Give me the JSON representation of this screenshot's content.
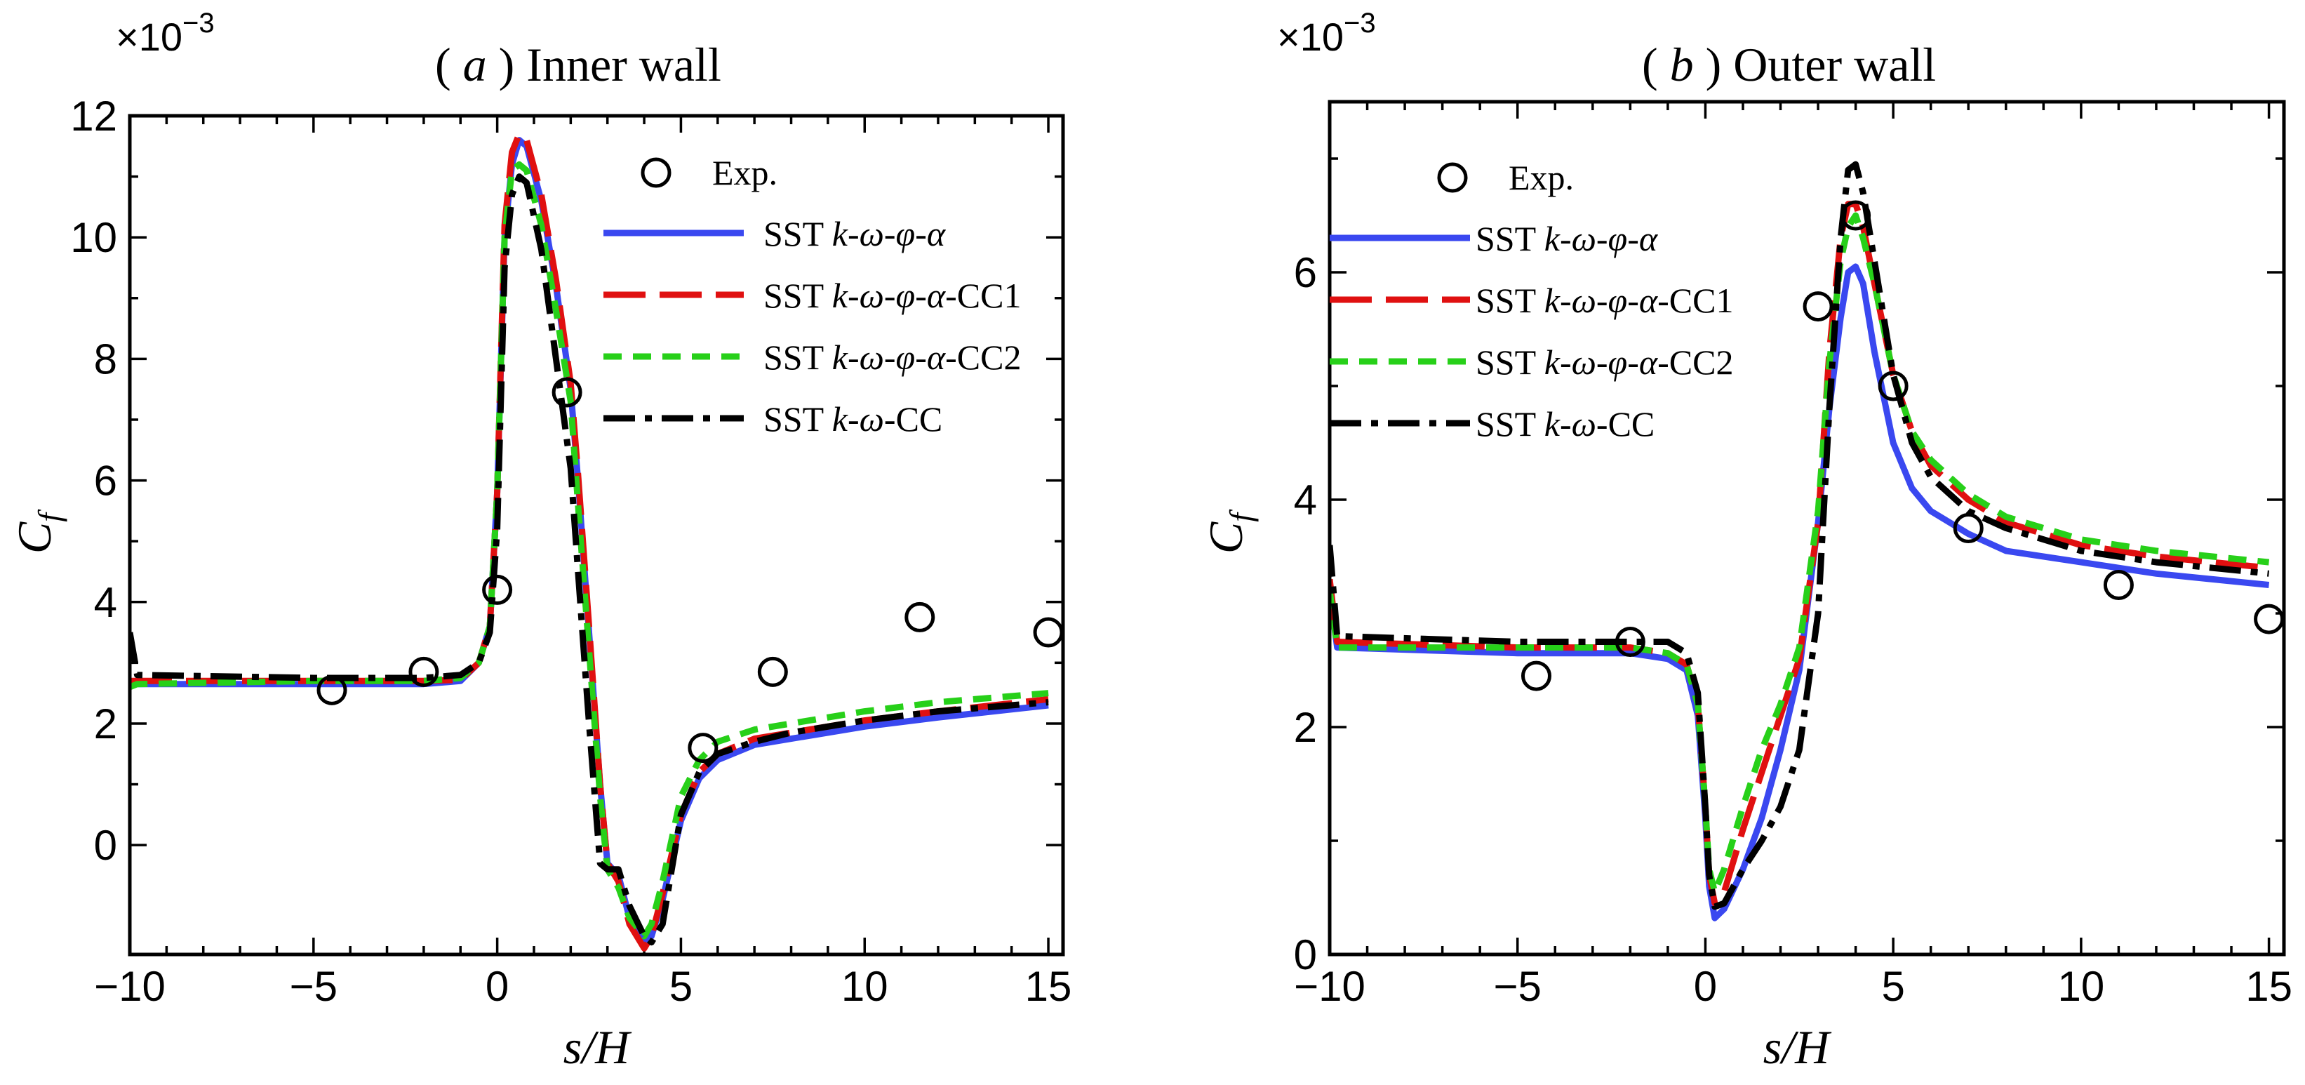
{
  "chart_data": [
    {
      "id": "a",
      "type": "line",
      "title_prefix": "( ",
      "title_letter": "a",
      "title_suffix": " ) Inner wall",
      "y_multiplier_base": "×10",
      "y_multiplier_exp": "−3",
      "xlabel": "s/H",
      "ylabel": "C",
      "ylabel_sub": "f",
      "xlim": [
        -10,
        15.4
      ],
      "ylim": [
        -1.8,
        12
      ],
      "xticks": [
        -10,
        -5,
        0,
        5,
        10,
        15
      ],
      "xtick_labels": [
        "−10",
        "−5",
        "0",
        "5",
        "10",
        "15"
      ],
      "yticks": [
        0,
        2,
        4,
        6,
        8,
        10,
        12
      ],
      "ytick_labels": [
        "0",
        "2",
        "4",
        "6",
        "8",
        "10",
        "12"
      ],
      "legend": {
        "position": "top-right",
        "exp_label": "Exp.",
        "entries": [
          {
            "series": 0,
            "prefix": "SST ",
            "italic": "k-ω-φ-α",
            "suffix": ""
          },
          {
            "series": 1,
            "prefix": "SST ",
            "italic": "k-ω-φ-α",
            "suffix": "-CC1"
          },
          {
            "series": 2,
            "prefix": "SST ",
            "italic": "k-ω-φ-α",
            "suffix": "-CC2"
          },
          {
            "series": 3,
            "prefix": "SST ",
            "italic": "k-ω",
            "suffix": "-CC"
          }
        ]
      },
      "experiment": {
        "name": "Exp.",
        "x": [
          -4.5,
          -2,
          0,
          1.9,
          5.6,
          7.5,
          11.5,
          15
        ],
        "y": [
          2.55,
          2.85,
          4.2,
          7.45,
          1.6,
          2.85,
          3.75,
          3.5
        ]
      },
      "series": [
        {
          "name": "SST k-ω-φ-α",
          "color": "#3a48f0",
          "dash": "none",
          "x": [
            -10,
            -9.8,
            -5,
            -2,
            -1,
            -0.5,
            -0.2,
            0,
            0.2,
            0.4,
            0.6,
            0.8,
            1.2,
            1.6,
            2,
            2.2,
            2.5,
            2.8,
            3,
            3.3,
            3.6,
            4,
            4.2,
            4.5,
            5,
            5.5,
            6,
            7,
            8,
            10,
            12,
            15
          ],
          "y": [
            2.65,
            2.65,
            2.65,
            2.65,
            2.7,
            3.0,
            3.6,
            5.8,
            10.0,
            11.2,
            11.6,
            11.5,
            10.6,
            9.2,
            7.5,
            6.0,
            3.5,
            1.0,
            -0.3,
            -0.5,
            -1.2,
            -1.6,
            -1.5,
            -0.9,
            0.4,
            1.1,
            1.4,
            1.65,
            1.75,
            1.95,
            2.1,
            2.3
          ]
        },
        {
          "name": "SST k-ω-φ-α-CC1",
          "color": "#e01010",
          "dash": "60,20",
          "x": [
            -10,
            -9.8,
            -5,
            -2,
            -1,
            -0.5,
            -0.2,
            0,
            0.2,
            0.4,
            0.6,
            0.8,
            1.2,
            1.6,
            2,
            2.2,
            2.5,
            2.8,
            3,
            3.3,
            3.6,
            4,
            4.2,
            4.5,
            5,
            5.5,
            6,
            7,
            8,
            10,
            12,
            15
          ],
          "y": [
            2.7,
            2.7,
            2.7,
            2.7,
            2.72,
            3.0,
            3.6,
            5.8,
            10.2,
            11.4,
            11.7,
            11.6,
            10.7,
            9.3,
            7.6,
            6.1,
            3.6,
            1.0,
            -0.3,
            -0.6,
            -1.3,
            -1.7,
            -1.5,
            -0.8,
            0.5,
            1.2,
            1.5,
            1.75,
            1.85,
            2.05,
            2.2,
            2.4
          ]
        },
        {
          "name": "SST k-ω-φ-α-CC2",
          "color": "#27d019",
          "dash": "26,16",
          "x": [
            -10,
            -9.8,
            -5,
            -2,
            -1,
            -0.5,
            -0.2,
            0,
            0.2,
            0.4,
            0.6,
            0.8,
            1.2,
            1.6,
            2,
            2.2,
            2.5,
            2.8,
            3,
            3.3,
            3.6,
            4,
            4.2,
            4.5,
            5,
            5.5,
            6,
            7,
            8,
            10,
            12,
            15
          ],
          "y": [
            2.6,
            2.65,
            2.7,
            2.7,
            2.75,
            3.0,
            3.6,
            5.8,
            10.0,
            11.1,
            11.2,
            11.1,
            10.2,
            8.8,
            7.3,
            5.6,
            3.2,
            0.8,
            -0.4,
            -0.7,
            -1.2,
            -1.5,
            -1.3,
            -0.6,
            0.8,
            1.4,
            1.7,
            1.9,
            2.0,
            2.2,
            2.35,
            2.5
          ]
        },
        {
          "name": "SST k-ω-CC",
          "color": "#000000",
          "dash": "45,14,10,14",
          "x": [
            -10,
            -9.8,
            -5,
            -2,
            -1,
            -0.5,
            -0.2,
            0,
            0.2,
            0.4,
            0.6,
            0.8,
            1.2,
            1.6,
            2,
            2.2,
            2.5,
            2.8,
            3,
            3.3,
            3.6,
            4,
            4.2,
            4.5,
            5,
            5.5,
            6,
            7,
            8,
            10,
            12,
            15
          ],
          "y": [
            3.5,
            2.8,
            2.75,
            2.75,
            2.8,
            3.0,
            3.5,
            5.2,
            9.5,
            10.7,
            11.0,
            10.9,
            9.8,
            8.0,
            6.2,
            4.5,
            2.0,
            -0.3,
            -0.4,
            -0.4,
            -1.0,
            -1.5,
            -1.6,
            -1.3,
            0.5,
            1.2,
            1.5,
            1.7,
            1.85,
            2.05,
            2.2,
            2.35
          ]
        }
      ]
    },
    {
      "id": "b",
      "type": "line",
      "title_prefix": "( ",
      "title_letter": "b",
      "title_suffix": " ) Outer wall",
      "y_multiplier_base": "×10",
      "y_multiplier_exp": "−3",
      "xlabel": "s/H",
      "ylabel": "C",
      "ylabel_sub": "f",
      "xlim": [
        -10,
        15.4
      ],
      "ylim": [
        0,
        7.5
      ],
      "xticks": [
        -10,
        -5,
        0,
        5,
        10,
        15
      ],
      "xtick_labels": [
        "−10",
        "−5",
        "0",
        "5",
        "10",
        "15"
      ],
      "yticks": [
        0,
        2,
        4,
        6
      ],
      "ytick_labels": [
        "0",
        "2",
        "4",
        "6"
      ],
      "legend": {
        "position": "top-left",
        "exp_label": "Exp.",
        "entries": [
          {
            "series": 0,
            "prefix": "SST ",
            "italic": "k-ω-φ-α",
            "suffix": ""
          },
          {
            "series": 1,
            "prefix": "SST ",
            "italic": "k-ω-φ-α",
            "suffix": "-CC1"
          },
          {
            "series": 2,
            "prefix": "SST ",
            "italic": "k-ω-φ-α",
            "suffix": "-CC2"
          },
          {
            "series": 3,
            "prefix": "SST ",
            "italic": "k-ω",
            "suffix": "-CC"
          }
        ]
      },
      "experiment": {
        "name": "Exp.",
        "x": [
          -4.5,
          -2,
          3,
          4,
          5,
          7,
          11,
          15
        ],
        "y": [
          2.45,
          2.75,
          5.7,
          6.5,
          5.0,
          3.75,
          3.25,
          2.95
        ]
      },
      "series": [
        {
          "name": "SST k-ω-φ-α",
          "color": "#3a48f0",
          "dash": "none",
          "x": [
            -10,
            -9.8,
            -5,
            -2,
            -1,
            -0.5,
            -0.2,
            0,
            0.1,
            0.25,
            0.5,
            1,
            1.5,
            2,
            2.5,
            3,
            3.3,
            3.6,
            3.8,
            4,
            4.2,
            4.5,
            5,
            5.5,
            6,
            7,
            8,
            10,
            12,
            15
          ],
          "y": [
            3.2,
            2.7,
            2.65,
            2.65,
            2.6,
            2.5,
            2.1,
            1.2,
            0.6,
            0.32,
            0.4,
            0.75,
            1.2,
            1.8,
            2.5,
            3.8,
            4.8,
            5.6,
            6.0,
            6.05,
            5.9,
            5.3,
            4.5,
            4.1,
            3.9,
            3.7,
            3.55,
            3.45,
            3.35,
            3.25
          ]
        },
        {
          "name": "SST k-ω-φ-α-CC1",
          "color": "#e01010",
          "dash": "60,20",
          "x": [
            -10,
            -9.8,
            -5,
            -2,
            -1,
            -0.5,
            -0.2,
            0,
            0.1,
            0.25,
            0.5,
            1,
            1.5,
            2,
            2.5,
            3,
            3.3,
            3.6,
            3.8,
            4,
            4.2,
            4.5,
            5,
            5.5,
            6,
            7,
            8,
            10,
            12,
            15
          ],
          "y": [
            3.3,
            2.75,
            2.7,
            2.7,
            2.65,
            2.55,
            2.2,
            1.3,
            0.7,
            0.45,
            0.55,
            1.1,
            1.6,
            2.1,
            2.6,
            3.8,
            5.3,
            6.3,
            6.6,
            6.6,
            6.4,
            5.9,
            5.1,
            4.6,
            4.3,
            4.0,
            3.8,
            3.6,
            3.5,
            3.4
          ]
        },
        {
          "name": "SST k-ω-φ-α-CC2",
          "color": "#27d019",
          "dash": "26,16",
          "x": [
            -10,
            -9.8,
            -5,
            -2,
            -1,
            -0.5,
            -0.2,
            0,
            0.1,
            0.25,
            0.5,
            1,
            1.5,
            2,
            2.5,
            3,
            3.3,
            3.6,
            3.8,
            4,
            4.2,
            4.5,
            5,
            5.5,
            6,
            7,
            8,
            10,
            12,
            15
          ],
          "y": [
            3.2,
            2.7,
            2.7,
            2.7,
            2.65,
            2.55,
            2.2,
            1.3,
            0.75,
            0.55,
            0.75,
            1.3,
            1.8,
            2.2,
            2.7,
            3.9,
            5.2,
            6.1,
            6.4,
            6.5,
            6.3,
            5.9,
            5.1,
            4.6,
            4.35,
            4.05,
            3.85,
            3.65,
            3.55,
            3.45
          ]
        },
        {
          "name": "SST k-ω-CC",
          "color": "#000000",
          "dash": "45,14,10,14",
          "x": [
            -10,
            -9.8,
            -5,
            -2,
            -1,
            -0.5,
            -0.2,
            0,
            0.1,
            0.25,
            0.5,
            1,
            1.5,
            2,
            2.5,
            3,
            3.3,
            3.6,
            3.8,
            4,
            4.2,
            4.5,
            5,
            5.5,
            6,
            7,
            8,
            10,
            12,
            15
          ],
          "y": [
            3.6,
            2.8,
            2.75,
            2.75,
            2.75,
            2.65,
            2.3,
            1.3,
            0.7,
            0.42,
            0.45,
            0.75,
            1.0,
            1.3,
            1.8,
            3.0,
            4.8,
            6.3,
            6.9,
            6.95,
            6.7,
            6.1,
            5.1,
            4.5,
            4.2,
            3.9,
            3.75,
            3.55,
            3.45,
            3.35
          ]
        }
      ]
    }
  ]
}
